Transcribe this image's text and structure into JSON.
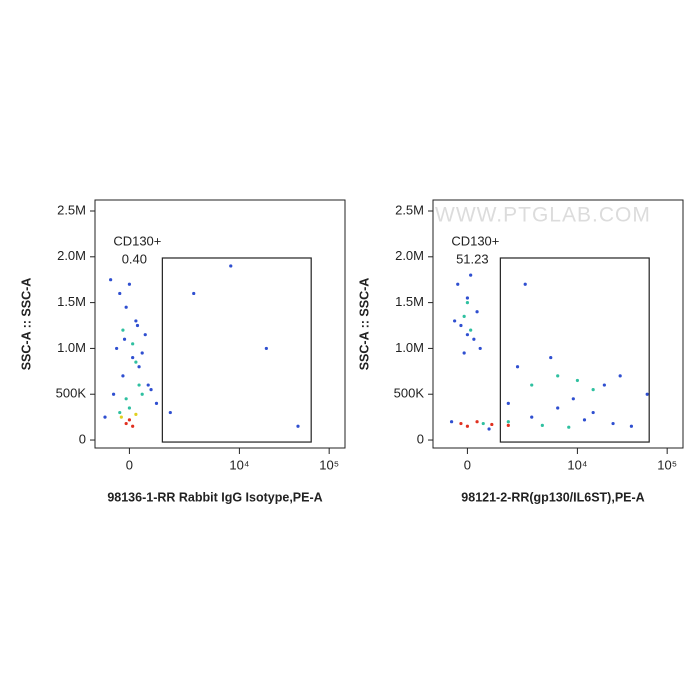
{
  "chart_data": [
    {
      "type": "scatter",
      "xscale": "biexponential",
      "x_label": "98136-1-RR Rabbit IgG Isotype,PE-A",
      "y_label": "SSC-A :: SSC-A",
      "xlim": [
        -1200,
        150000
      ],
      "ylim": [
        -87000,
        2620000
      ],
      "xticks": [
        0,
        {
          "value": 10000,
          "label": "10⁴"
        },
        {
          "value": 100000,
          "label": "10⁵"
        }
      ],
      "yticks": [
        0,
        {
          "value": 500000,
          "label": "500K"
        },
        {
          "value": 1000000,
          "label": "1.0M"
        },
        {
          "value": 1500000,
          "label": "1.5M"
        },
        {
          "value": 2000000,
          "label": "2.0M"
        },
        {
          "value": 2500000,
          "label": "2.5M"
        }
      ],
      "gate": {
        "name": "CD130+",
        "percent": "0.40",
        "x": [
          1137,
          63100
        ],
        "y": [
          -22000,
          1987000
        ]
      },
      "series": [
        {
          "color": "#2f4fd0",
          "x": [
            -600,
            -300,
            -100,
            200,
            500,
            -400,
            100,
            300,
            -200,
            0,
            600,
            -500,
            250,
            -150,
            400,
            3000,
            8000,
            20000,
            1500,
            45000,
            -800,
            700,
            900
          ],
          "y": [
            1750000,
            1600000,
            1450000,
            1300000,
            1150000,
            1000000,
            900000,
            800000,
            700000,
            1700000,
            600000,
            500000,
            1250000,
            1100000,
            950000,
            1600000,
            1900000,
            1000000,
            300000,
            150000,
            250000,
            550000,
            400000
          ]
        },
        {
          "color": "#2fc0a0",
          "x": [
            -200,
            100,
            300,
            -100,
            200,
            0,
            -300,
            400
          ],
          "y": [
            1200000,
            1050000,
            600000,
            450000,
            850000,
            350000,
            300000,
            500000
          ]
        },
        {
          "color": "#e0d020",
          "x": [
            -250,
            200
          ],
          "y": [
            250000,
            280000
          ]
        },
        {
          "color": "#e03020",
          "x": [
            -100,
            0,
            100
          ],
          "y": [
            180000,
            220000,
            150000
          ]
        }
      ]
    },
    {
      "type": "scatter",
      "xscale": "biexponential",
      "x_label": "98121-2-RR(gp130/IL6ST),PE-A",
      "y_label": "SSC-A :: SSC-A",
      "watermark": "WWW.PTGLAB.COM",
      "xlim": [
        -1200,
        150000
      ],
      "ylim": [
        -87000,
        2620000
      ],
      "xticks": [
        0,
        {
          "value": 10000,
          "label": "10⁴"
        },
        {
          "value": 100000,
          "label": "10⁵"
        }
      ],
      "yticks": [
        0,
        {
          "value": 500000,
          "label": "500K"
        },
        {
          "value": 1000000,
          "label": "1.0M"
        },
        {
          "value": 1500000,
          "label": "1.5M"
        },
        {
          "value": 2000000,
          "label": "2.0M"
        },
        {
          "value": 2500000,
          "label": "2.5M"
        }
      ],
      "gate": {
        "name": "CD130+",
        "percent": "51.23",
        "x": [
          1137,
          63100
        ],
        "y": [
          -22000,
          1987000
        ]
      },
      "series": [
        {
          "color": "#2f4fd0",
          "x": [
            -300,
            0,
            300,
            -200,
            200,
            -100,
            100,
            -400,
            400,
            0,
            1500,
            3000,
            6000,
            12000,
            25000,
            40000,
            2000,
            5000,
            9000,
            15000,
            -500,
            700,
            2500,
            30000,
            60000,
            20000
          ],
          "y": [
            1700000,
            1550000,
            1400000,
            1250000,
            1100000,
            950000,
            1800000,
            1300000,
            1000000,
            1150000,
            400000,
            250000,
            350000,
            220000,
            180000,
            150000,
            800000,
            900000,
            450000,
            300000,
            200000,
            120000,
            1700000,
            700000,
            500000,
            600000
          ]
        },
        {
          "color": "#2fc0a0",
          "x": [
            -100,
            100,
            0,
            3000,
            6000,
            10000,
            15000,
            500,
            1500,
            4000,
            8000
          ],
          "y": [
            1350000,
            1200000,
            1500000,
            600000,
            700000,
            650000,
            550000,
            180000,
            200000,
            160000,
            140000
          ]
        },
        {
          "color": "#e03020",
          "x": [
            -200,
            0,
            300,
            800,
            1500
          ],
          "y": [
            180000,
            150000,
            200000,
            170000,
            160000
          ]
        }
      ]
    }
  ]
}
